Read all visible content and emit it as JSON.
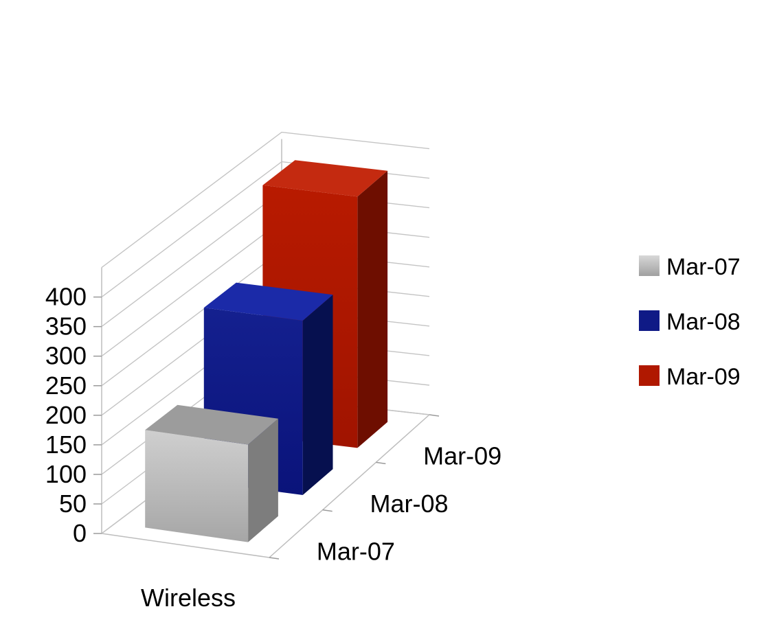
{
  "chart_data": {
    "type": "bar",
    "style": "3d-column",
    "categories": [
      "Wireless"
    ],
    "depth_axis_labels": [
      "Mar-07",
      "Mar-08",
      "Mar-09"
    ],
    "series": [
      {
        "name": "Mar-07",
        "values": [
          165
        ],
        "color": "#b5b5b5"
      },
      {
        "name": "Mar-08",
        "values": [
          295
        ],
        "color": "#0f1a86"
      },
      {
        "name": "Mar-09",
        "values": [
          425
        ],
        "color": "#b01800"
      }
    ],
    "y_ticks": [
      "0",
      "50",
      "100",
      "150",
      "200",
      "250",
      "300",
      "350",
      "400"
    ],
    "ylim": [
      0,
      450
    ],
    "grid": true,
    "legend_position": "right"
  }
}
